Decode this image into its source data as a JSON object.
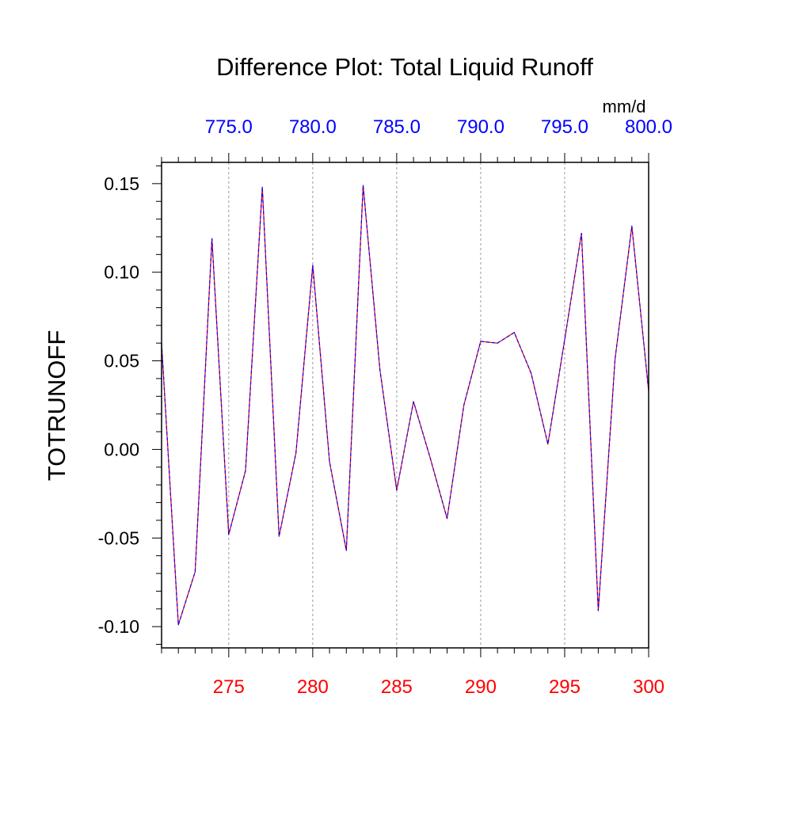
{
  "chart_data": {
    "type": "line",
    "title": "Difference Plot: Total Liquid Runoff",
    "units": "mm/d",
    "ylabel": "TOTRUNOFF",
    "xlim": [
      271,
      300
    ],
    "ylim": [
      -0.112,
      0.162
    ],
    "bottom_axis": {
      "ticks": [
        275,
        280,
        285,
        290,
        295,
        300
      ],
      "tick_labels": [
        "275",
        "280",
        "285",
        "290",
        "295",
        "300"
      ],
      "color": "#ff0000"
    },
    "top_axis": {
      "tick_positions": [
        275,
        280,
        285,
        290,
        295,
        300
      ],
      "tick_labels": [
        "775.0",
        "780.0",
        "785.0",
        "790.0",
        "795.0",
        "800.0"
      ],
      "color": "#0000ff"
    },
    "y_ticks": [
      -0.1,
      -0.05,
      0.0,
      0.05,
      0.1,
      0.15
    ],
    "y_tick_labels": [
      "-0.10",
      "-0.05",
      "0.00",
      "0.05",
      "0.10",
      "0.15"
    ],
    "grid": "vertical dashed at major x ticks",
    "series": [
      {
        "color": "#ff0000",
        "dash_color": "#0000ff",
        "x": [
          271,
          272,
          273,
          274,
          275,
          276,
          277,
          278,
          279,
          280,
          281,
          282,
          283,
          284,
          285,
          286,
          287,
          288,
          289,
          290,
          291,
          292,
          293,
          294,
          295,
          296,
          297,
          298,
          299,
          300
        ],
        "y": [
          0.06,
          -0.099,
          -0.069,
          0.119,
          -0.048,
          -0.012,
          0.148,
          -0.049,
          -0.002,
          0.104,
          -0.007,
          -0.057,
          0.149,
          0.045,
          -0.023,
          0.027,
          -0.005,
          -0.039,
          0.025,
          0.061,
          0.06,
          0.066,
          0.043,
          0.003,
          0.062,
          0.122,
          -0.091,
          0.051,
          0.126,
          0.033
        ]
      }
    ]
  }
}
